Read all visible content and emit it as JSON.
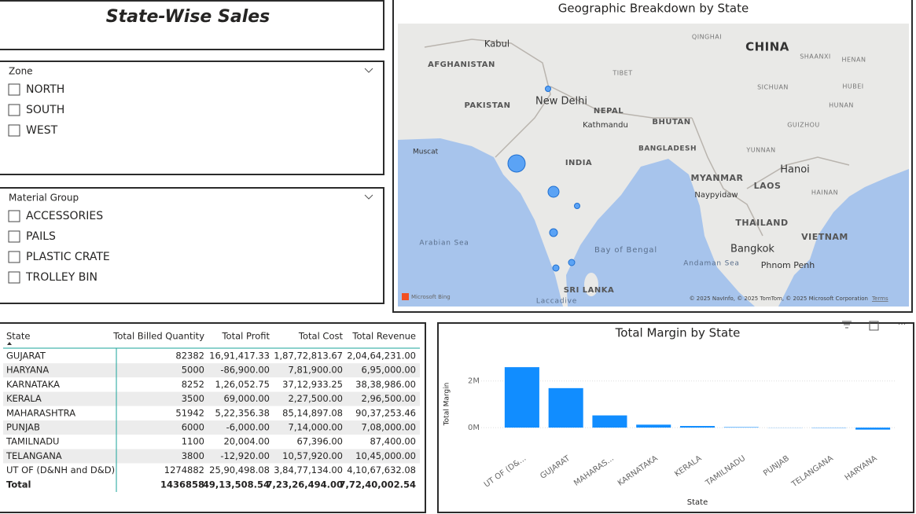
{
  "title": "State-Wise Sales",
  "zone_slicer": {
    "label": "Zone",
    "options": [
      "NORTH",
      "SOUTH",
      "WEST"
    ]
  },
  "material_slicer": {
    "label": "Material Group",
    "options": [
      "ACCESSORIES",
      "PAILS",
      "PLASTIC CRATE",
      "TROLLEY BIN"
    ]
  },
  "map": {
    "title": "Geographic Breakdown by State",
    "places": [
      "Kabul",
      "AFGHANISTAN",
      "PAKISTAN",
      "New Delhi",
      "NEPAL",
      "Kathmandu",
      "BHUTAN",
      "BANGLADESH",
      "INDIA",
      "MYANMAR",
      "Naypyidaw",
      "LAOS",
      "Hanoi",
      "HAINAN",
      "THAILAND",
      "Bangkok",
      "VIETNAM",
      "Phnom Penh",
      "SRI LANKA",
      "Arabian Sea",
      "Bay of Bengal",
      "Andaman Sea",
      "CHINA",
      "QINGHAI",
      "TIBET",
      "SICHUAN",
      "YUNNAN",
      "GUIZHOU",
      "HUNAN",
      "HUBEI",
      "HENAN",
      "SHAANXI",
      "Muscat",
      "Laccadive"
    ],
    "brand": "Microsoft Bing",
    "attribution": "© 2025 NavInfo, © 2025 TomTom, © 2025 Microsoft Corporation",
    "terms": "Terms"
  },
  "table": {
    "columns": [
      "State",
      "Total Billed Quantity",
      "Total Profit",
      "Total Cost",
      "Total Revenue"
    ],
    "rows": [
      [
        "GUJARAT",
        "82382",
        "16,91,417.33",
        "1,87,72,813.67",
        "2,04,64,231.00"
      ],
      [
        "HARYANA",
        "5000",
        "-86,900.00",
        "7,81,900.00",
        "6,95,000.00"
      ],
      [
        "KARNATAKA",
        "8252",
        "1,26,052.75",
        "37,12,933.25",
        "38,38,986.00"
      ],
      [
        "KERALA",
        "3500",
        "69,000.00",
        "2,27,500.00",
        "2,96,500.00"
      ],
      [
        "MAHARASHTRA",
        "51942",
        "5,22,356.38",
        "85,14,897.08",
        "90,37,253.46"
      ],
      [
        "PUNJAB",
        "6000",
        "-6,000.00",
        "7,14,000.00",
        "7,08,000.00"
      ],
      [
        "TAMILNADU",
        "1100",
        "20,004.00",
        "67,396.00",
        "87,400.00"
      ],
      [
        "TELANGANA",
        "3800",
        "-12,920.00",
        "10,57,920.00",
        "10,45,000.00"
      ],
      [
        "UT OF (D&NH and D&D)",
        "1274882",
        "25,90,498.08",
        "3,84,77,134.00",
        "4,10,67,632.08"
      ]
    ],
    "total": [
      "Total",
      "1436858",
      "49,13,508.54",
      "7,23,26,494.00",
      "7,72,40,002.54"
    ]
  },
  "chart_data": {
    "type": "bar",
    "title": "Total Margin by State",
    "x_label": "State",
    "y_label": "Total Margin",
    "categories": [
      "UT OF (D&...",
      "GUJARAT",
      "MAHARAS...",
      "KARNATAKA",
      "KERALA",
      "TAMILNADU",
      "PUNJAB",
      "TELANGANA",
      "HARYANA"
    ],
    "values": [
      2590498.08,
      1691417.33,
      522356.38,
      126052.75,
      69000,
      20004,
      -6000,
      -12920,
      -86900
    ],
    "color": "#118dff",
    "ylim": [
      -200000,
      3000000
    ],
    "yticks": [
      {
        "value": 0,
        "label": "0M"
      },
      {
        "value": 2000000,
        "label": "2M"
      }
    ],
    "grid": true
  }
}
